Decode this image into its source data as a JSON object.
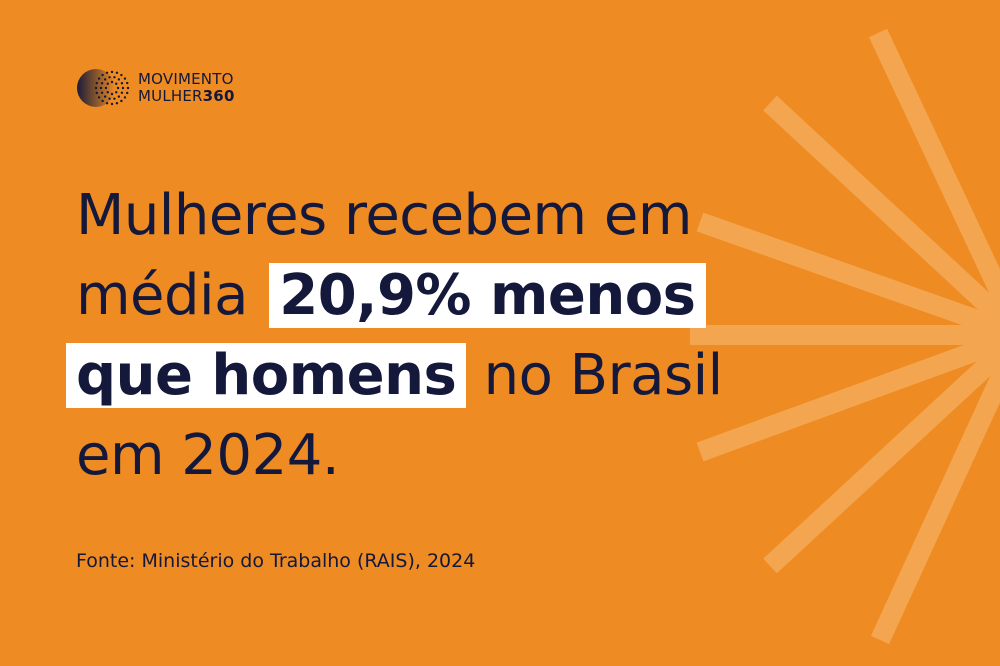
{
  "brand": {
    "line1": "MOVIMENTO",
    "line2_text": "MULHER",
    "line2_number": "360",
    "mark_icon": "dotted-circle-logo-icon"
  },
  "headline": {
    "part1": "Mulheres recebem em média",
    "highlight1": "20,9% menos",
    "highlight2": "que homens",
    "part2": "no Brasil em 2024."
  },
  "source": "Fonte: Ministério do Trabalho (RAIS), 2024",
  "colors": {
    "background": "#EE8B22",
    "text": "#14183A",
    "highlight": "#FFFFFF",
    "rays": "#F5AE5E"
  },
  "decoration": {
    "icon": "sunburst-rays-icon"
  }
}
